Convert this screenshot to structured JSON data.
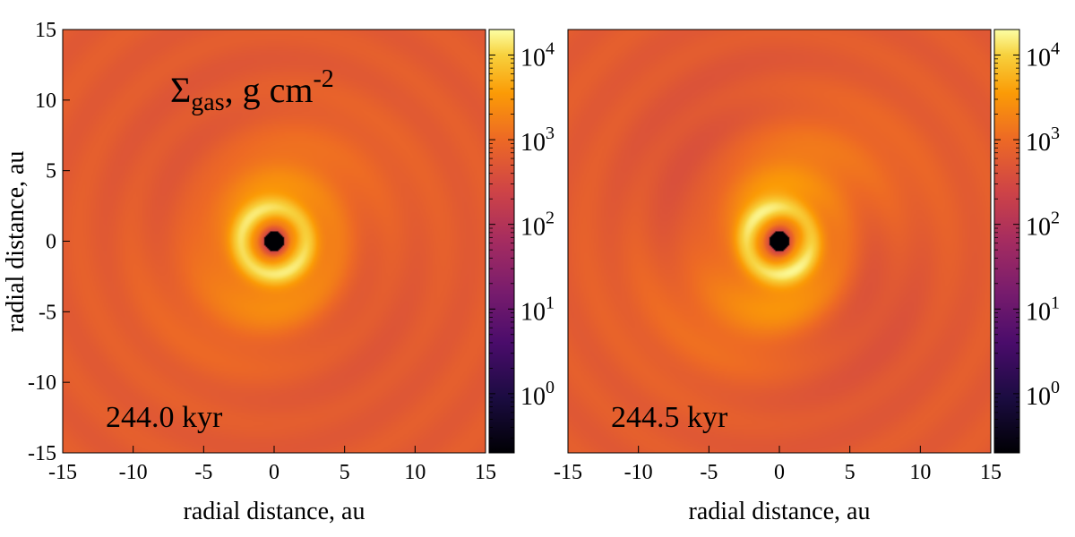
{
  "chart_data": [
    {
      "type": "heatmap",
      "panel": "left",
      "quantity_label": "Σgas, g cm-2",
      "quantity_symbol": "Σ",
      "quantity_subscript": "gas",
      "quantity_units": ", g cm",
      "quantity_units_exponent": "-2",
      "time_label": "244.0 kyr",
      "xlabel": "radial distance, au",
      "ylabel": "radial distance, au",
      "xlim": [
        -15,
        15
      ],
      "ylim": [
        -15,
        15
      ],
      "xticks": [
        "-15",
        "-10",
        "-5",
        "0",
        "5",
        "10",
        "15"
      ],
      "yticks": [
        "-15",
        "-10",
        "-5",
        "0",
        "5",
        "10",
        "15"
      ],
      "colorbar": {
        "scale": "log",
        "range": [
          0.2,
          20000
        ],
        "tick_exponents": [
          "0",
          "1",
          "2",
          "3",
          "4"
        ],
        "tick_base": "10",
        "colormap": "inferno"
      },
      "features": {
        "inner_ring_radius_au": 2.3,
        "inner_hole_radius_au": 0.7,
        "spiral_arms": 2,
        "spiral_strength": 0.35
      }
    },
    {
      "type": "heatmap",
      "panel": "right",
      "time_label": "244.5 kyr",
      "xlabel": "radial distance, au",
      "xlim": [
        -15,
        15
      ],
      "ylim": [
        -15,
        15
      ],
      "xticks": [
        "-15",
        "-10",
        "-5",
        "0",
        "5",
        "10",
        "15"
      ],
      "colorbar": {
        "scale": "log",
        "range": [
          0.2,
          20000
        ],
        "tick_exponents": [
          "0",
          "1",
          "2",
          "3",
          "4"
        ],
        "tick_base": "10",
        "colormap": "inferno"
      },
      "features": {
        "inner_ring_radius_au": 2.3,
        "inner_hole_radius_au": 0.7,
        "spiral_arms": 2,
        "spiral_strength": 0.65
      }
    }
  ],
  "colors": {
    "disk_base": "#e3642e",
    "ring_bright": "#fbd27a",
    "hole": "#000000"
  }
}
